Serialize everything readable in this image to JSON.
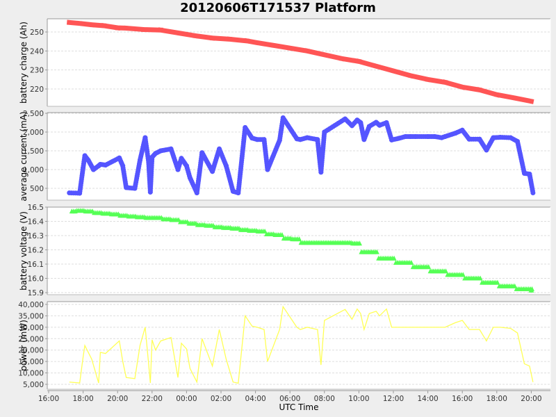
{
  "title": "20120606T171537 Platform",
  "x_axis": {
    "label": "UTC Time",
    "ticks": [
      "16:00",
      "18:00",
      "20:00",
      "22:00",
      "00:00",
      "02:00",
      "04:00",
      "06:00",
      "08:00",
      "10:00",
      "12:00",
      "14:00",
      "16:00",
      "18:00",
      "20:00"
    ]
  },
  "colors": {
    "background": "#eeeeee",
    "plot_background": "#ffffff",
    "grid": "#dddddd",
    "axis": "#999999",
    "charge": "#ff5555",
    "current": "#5555ff",
    "voltage": "#55ff55",
    "power": "#ffff55"
  },
  "chart_data": [
    {
      "type": "scatter",
      "title": "battery charge (Ah)",
      "ylabel": "battery charge (Ah)",
      "xlabel": "UTC Time",
      "yticks": [
        "250",
        "240",
        "230",
        "220"
      ],
      "ylim": [
        211,
        257
      ],
      "x_hours": [
        17.2,
        17.8,
        18.5,
        19.2,
        20.0,
        20.5,
        21.5,
        22.5,
        23.5,
        24.5,
        25.5,
        26.5,
        27.5,
        28.0,
        29.0,
        30.0,
        31.0,
        32.0,
        33.0,
        34.0,
        35.0,
        36.0,
        37.0,
        38.0,
        39.0,
        40.0,
        41.0,
        42.0,
        43.0,
        44.0
      ],
      "values": [
        255.0,
        254.5,
        253.8,
        253.3,
        252.2,
        252.0,
        251.3,
        251.0,
        249.5,
        248.0,
        246.8,
        246.2,
        245.3,
        244.5,
        243.0,
        241.5,
        240.0,
        238.0,
        236.0,
        234.5,
        232.0,
        229.5,
        227.0,
        225.0,
        223.5,
        221.0,
        219.5,
        217.0,
        215.3,
        213.5
      ]
    },
    {
      "type": "line",
      "title": "average current (mA)",
      "ylabel": "average current (mA)",
      "xlabel": "UTC Time",
      "yticks": [
        "2,500",
        "2,000",
        "1,500",
        "1,000",
        "500"
      ],
      "ylim": [
        200,
        2520
      ],
      "x_hours": [
        17.2,
        17.8,
        18.0,
        18.1,
        18.3,
        18.6,
        18.9,
        19.0,
        19.3,
        20.1,
        20.3,
        20.5,
        21.0,
        21.3,
        21.6,
        21.8,
        21.9,
        22.0,
        22.2,
        22.5,
        23.1,
        23.5,
        23.7,
        24.0,
        24.2,
        24.6,
        24.9,
        25.5,
        25.9,
        26.3,
        26.7,
        27.0,
        27.4,
        27.8,
        28.1,
        28.5,
        28.7,
        29.4,
        29.6,
        30.4,
        30.6,
        31.0,
        31.6,
        31.8,
        32.0,
        33.2,
        33.6,
        33.9,
        34.1,
        34.3,
        34.6,
        35.0,
        35.2,
        35.6,
        35.9,
        36.3,
        36.7,
        37.0,
        37.3,
        38.0,
        38.4,
        38.8,
        39.0,
        39.6,
        40.0,
        40.4,
        41.0,
        41.4,
        41.8,
        42.2,
        42.8,
        43.2,
        43.6,
        43.9,
        44.1
      ],
      "values": [
        380,
        370,
        1050,
        1370,
        1250,
        1000,
        1100,
        1140,
        1120,
        1310,
        1100,
        520,
        500,
        1250,
        1850,
        1200,
        400,
        1330,
        1430,
        1500,
        1550,
        1000,
        1300,
        1100,
        780,
        380,
        1450,
        950,
        1550,
        1100,
        420,
        380,
        2120,
        1840,
        1800,
        1800,
        1000,
        1780,
        2380,
        1820,
        1800,
        1850,
        1800,
        930,
        2000,
        2350,
        2170,
        2320,
        2250,
        1800,
        2150,
        2260,
        2180,
        2250,
        1790,
        1830,
        1880,
        1880,
        1880,
        1880,
        1880,
        1850,
        1880,
        1970,
        2050,
        1810,
        1810,
        1520,
        1850,
        1860,
        1850,
        1750,
        900,
        880,
        380
      ]
    },
    {
      "type": "scatter",
      "title": "battery voltage (V)",
      "ylabel": "battery voltage (V)",
      "xlabel": "UTC Time",
      "yticks": [
        "16.5",
        "16.4",
        "16.3",
        "16.2",
        "16.1",
        "16.0",
        "15.9"
      ],
      "ylim": [
        15.9,
        16.5
      ],
      "x_hours": [
        17.2,
        17.5,
        18.0,
        18.5,
        19.0,
        19.5,
        20.0,
        20.5,
        21.0,
        21.5,
        22.0,
        22.5,
        23.0,
        23.5,
        24.0,
        24.5,
        25.0,
        25.5,
        26.0,
        26.5,
        27.0,
        27.5,
        28.0,
        28.5,
        29.0,
        29.5,
        30.0,
        30.5,
        31.0,
        31.5,
        32.0,
        32.5,
        33.0,
        33.5,
        34.0,
        34.5,
        35.0,
        35.5,
        36.0,
        36.5,
        37.0,
        37.5,
        38.0,
        38.5,
        39.0,
        39.5,
        40.0,
        40.5,
        41.0,
        41.5,
        42.0,
        42.5,
        43.0,
        43.5,
        44.0
      ],
      "values": [
        16.47,
        16.475,
        16.47,
        16.46,
        16.455,
        16.45,
        16.44,
        16.435,
        16.43,
        16.425,
        16.425,
        16.415,
        16.41,
        16.395,
        16.385,
        16.375,
        16.37,
        16.36,
        16.355,
        16.35,
        16.34,
        16.335,
        16.33,
        16.31,
        16.305,
        16.28,
        16.275,
        16.25,
        16.25,
        16.25,
        16.25,
        16.25,
        16.25,
        16.245,
        16.185,
        16.185,
        16.14,
        16.14,
        16.11,
        16.11,
        16.08,
        16.08,
        16.05,
        16.05,
        16.025,
        16.025,
        16.0,
        16.0,
        15.97,
        15.97,
        15.945,
        15.945,
        15.925,
        15.925,
        15.915
      ]
    },
    {
      "type": "line",
      "title": "power (mW)",
      "ylabel": "power (mW)",
      "xlabel": "UTC Time",
      "yticks": [
        "40,000",
        "35,000",
        "30,000",
        "25,000",
        "20,000",
        "15,000",
        "10,000",
        "5,000"
      ],
      "ylim": [
        3500,
        41000
      ],
      "x_hours": [
        17.2,
        17.8,
        18.0,
        18.1,
        18.5,
        18.9,
        19.0,
        19.3,
        20.1,
        20.3,
        20.5,
        21.0,
        21.3,
        21.6,
        21.8,
        21.9,
        22.0,
        22.2,
        22.5,
        23.1,
        23.5,
        23.7,
        24.0,
        24.2,
        24.6,
        24.9,
        25.5,
        25.9,
        26.3,
        26.7,
        27.0,
        27.4,
        27.8,
        28.1,
        28.5,
        28.7,
        29.4,
        29.6,
        30.4,
        30.6,
        31.0,
        31.6,
        31.8,
        32.0,
        33.2,
        33.6,
        33.9,
        34.1,
        34.3,
        34.6,
        35.0,
        35.2,
        35.6,
        35.9,
        36.3,
        36.7,
        37.0,
        37.3,
        38.0,
        38.4,
        38.8,
        39.0,
        39.6,
        40.0,
        40.4,
        41.0,
        41.4,
        41.8,
        42.2,
        42.8,
        43.2,
        43.6,
        43.9,
        44.1
      ],
      "values": [
        6000,
        5600,
        17000,
        22000,
        16000,
        5600,
        19000,
        18500,
        24000,
        15000,
        8000,
        7500,
        22000,
        30000,
        14000,
        5600,
        24500,
        20000,
        24000,
        25500,
        8000,
        23000,
        20500,
        12000,
        6000,
        25000,
        13000,
        29000,
        16000,
        6000,
        5500,
        35000,
        30500,
        30000,
        29000,
        15000,
        29000,
        39000,
        30000,
        29000,
        30000,
        29000,
        13500,
        33000,
        37800,
        33500,
        38000,
        36000,
        29000,
        36000,
        37000,
        35000,
        38000,
        30000,
        30000,
        30000,
        30000,
        30000,
        30000,
        30000,
        30000,
        30000,
        32000,
        33000,
        29000,
        29000,
        24000,
        30000,
        30000,
        29500,
        27500,
        14000,
        13000,
        6000
      ]
    }
  ]
}
